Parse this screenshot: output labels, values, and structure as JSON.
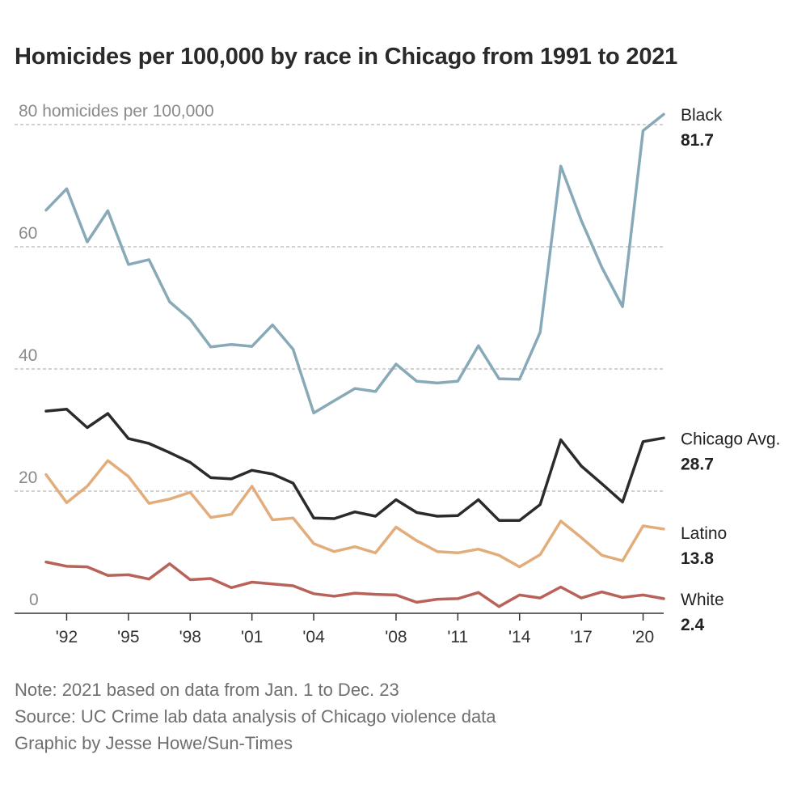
{
  "chart_data": {
    "type": "line",
    "title": "Homicides per 100,000 by race in Chicago from 1991 to 2021",
    "xlabel": "",
    "ylabel": "",
    "ylim": [
      0,
      80
    ],
    "xlim": [
      1991,
      2021
    ],
    "y_ticks": [
      {
        "value": 80,
        "label": "80 homicides per 100,000"
      },
      {
        "value": 60,
        "label": "60"
      },
      {
        "value": 40,
        "label": "40"
      },
      {
        "value": 20,
        "label": "20"
      },
      {
        "value": 0,
        "label": "0"
      }
    ],
    "x_ticks": [
      {
        "value": 1992,
        "label": "'92"
      },
      {
        "value": 1995,
        "label": "'95"
      },
      {
        "value": 1998,
        "label": "'98"
      },
      {
        "value": 2001,
        "label": "'01"
      },
      {
        "value": 2004,
        "label": "'04"
      },
      {
        "value": 2008,
        "label": "'08"
      },
      {
        "value": 2011,
        "label": "'11"
      },
      {
        "value": 2014,
        "label": "'14"
      },
      {
        "value": 2017,
        "label": "'17"
      },
      {
        "value": 2020,
        "label": "'20"
      }
    ],
    "grid": true,
    "legend": "direct labels at line ends",
    "x": [
      1991,
      1992,
      1993,
      1994,
      1995,
      1996,
      1997,
      1998,
      1999,
      2000,
      2001,
      2002,
      2003,
      2004,
      2005,
      2006,
      2007,
      2008,
      2009,
      2010,
      2011,
      2012,
      2013,
      2014,
      2015,
      2016,
      2017,
      2018,
      2019,
      2020,
      2021
    ],
    "series": [
      {
        "name": "Black",
        "end_label": "81.7",
        "color": "#88a9b7",
        "values": [
          66.0,
          69.5,
          60.8,
          65.9,
          57.1,
          57.9,
          51.0,
          48.1,
          43.6,
          44.0,
          43.7,
          47.2,
          43.2,
          32.8,
          34.8,
          36.8,
          36.3,
          40.8,
          38.0,
          37.7,
          38.0,
          43.8,
          38.4,
          38.3,
          46.0,
          73.2,
          64.3,
          56.6,
          50.2,
          79.0,
          81.7
        ]
      },
      {
        "name": "Chicago Avg.",
        "end_label": "28.7",
        "color": "#2b2b2b",
        "values": [
          33.1,
          33.4,
          30.4,
          32.7,
          28.6,
          27.8,
          26.3,
          24.7,
          22.2,
          22.0,
          23.4,
          22.8,
          21.3,
          15.6,
          15.5,
          16.6,
          15.9,
          18.6,
          16.5,
          15.9,
          16.0,
          18.6,
          15.2,
          15.2,
          17.8,
          28.4,
          24.1,
          21.2,
          18.2,
          28.1,
          28.7
        ]
      },
      {
        "name": "Latino",
        "end_label": "13.8",
        "color": "#e3ad7b",
        "values": [
          22.7,
          18.1,
          20.8,
          25.0,
          22.4,
          18.0,
          18.7,
          19.8,
          15.7,
          16.2,
          20.8,
          15.3,
          15.6,
          11.4,
          10.1,
          10.9,
          9.9,
          14.1,
          11.9,
          10.1,
          9.9,
          10.5,
          9.5,
          7.6,
          9.6,
          15.1,
          12.4,
          9.5,
          8.6,
          14.3,
          13.8
        ]
      },
      {
        "name": "White",
        "end_label": "2.4",
        "color": "#b9625a",
        "values": [
          8.4,
          7.7,
          7.6,
          6.2,
          6.3,
          5.6,
          8.1,
          5.5,
          5.7,
          4.2,
          5.1,
          4.8,
          4.5,
          3.2,
          2.8,
          3.3,
          3.1,
          3.0,
          1.8,
          2.3,
          2.4,
          3.4,
          1.1,
          3.0,
          2.5,
          4.3,
          2.5,
          3.5,
          2.6,
          3.0,
          2.4
        ]
      }
    ]
  },
  "notes": {
    "note": "Note: 2021 based on data from Jan. 1 to Dec. 23",
    "source": "Source: UC Crime lab data analysis of Chicago violence data",
    "credit": "Graphic by Jesse Howe/Sun-Times"
  }
}
